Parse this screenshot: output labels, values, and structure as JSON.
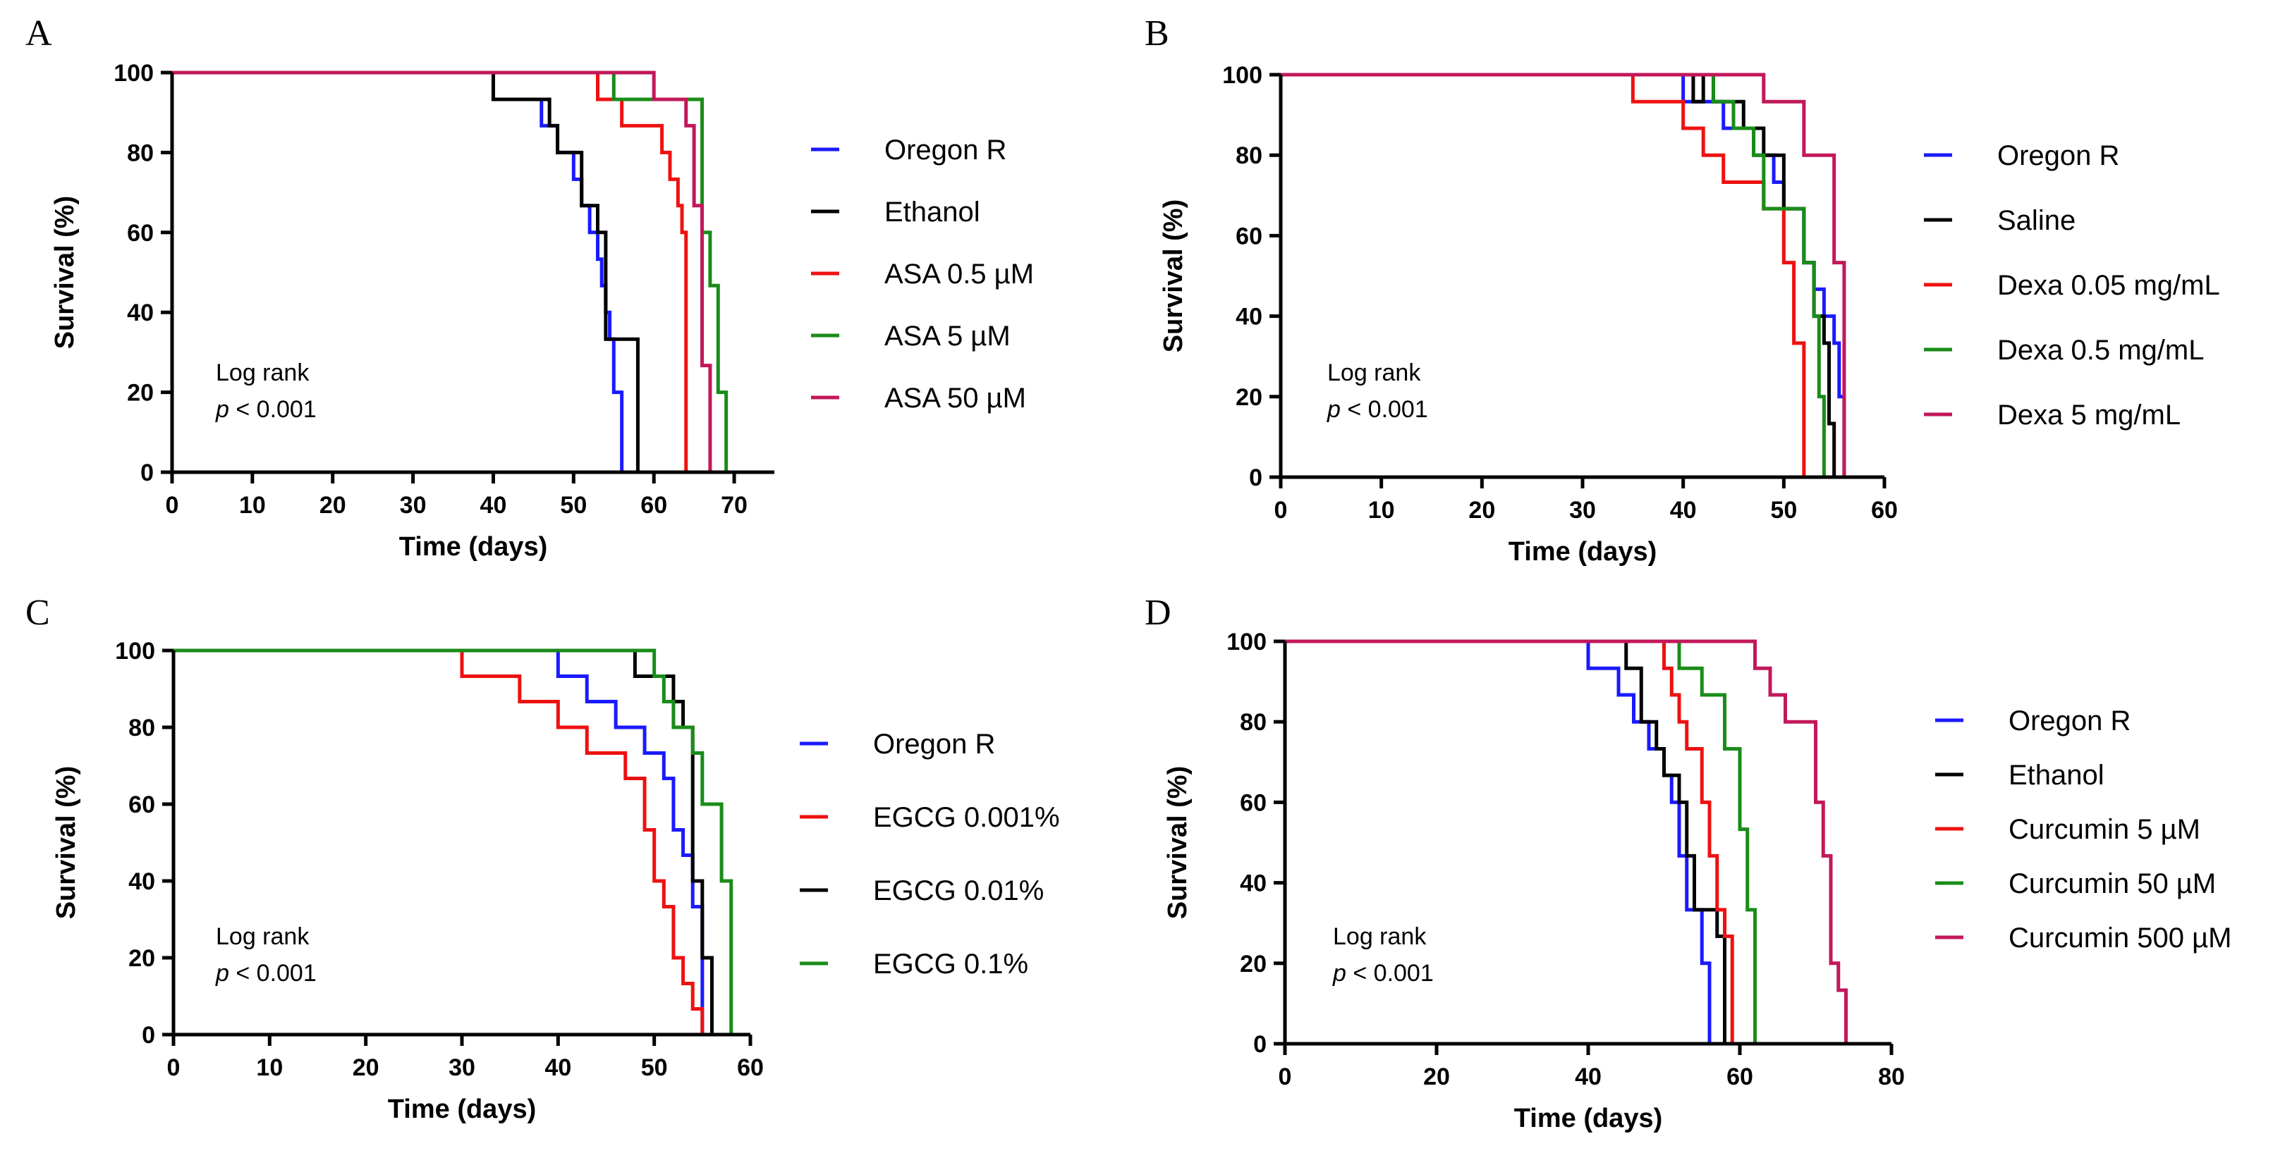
{
  "chart_data": [
    {
      "panel": "A",
      "type": "line",
      "subtype": "kaplan-meier",
      "xlabel": "Time (days)",
      "ylabel": "Survival (%)",
      "xlim": [
        0,
        75
      ],
      "ylim": [
        0,
        100
      ],
      "xticks": [
        0,
        10,
        20,
        30,
        40,
        50,
        60,
        70
      ],
      "yticks": [
        0,
        20,
        40,
        60,
        80,
        100
      ],
      "annotation": {
        "line1": "Log rank",
        "p_symbol": "p",
        "p_rest": " < 0.001"
      },
      "series": [
        {
          "name": "Oregon R",
          "color": "#1a1aff",
          "steps": [
            [
              0,
              100
            ],
            [
              40,
              93.3
            ],
            [
              46,
              86.7
            ],
            [
              48,
              80
            ],
            [
              50,
              73.3
            ],
            [
              51,
              66.7
            ],
            [
              52,
              60
            ],
            [
              53,
              53.3
            ],
            [
              53.5,
              46.7
            ],
            [
              54,
              40
            ],
            [
              54.5,
              33.3
            ],
            [
              55,
              20
            ],
            [
              56,
              0
            ]
          ]
        },
        {
          "name": "Ethanol",
          "color": "#000000",
          "steps": [
            [
              0,
              100
            ],
            [
              40,
              93.3
            ],
            [
              47,
              86.7
            ],
            [
              48,
              80
            ],
            [
              51,
              66.7
            ],
            [
              53,
              60
            ],
            [
              54,
              33.3
            ],
            [
              58,
              0
            ]
          ]
        },
        {
          "name": "ASA 0.5 µM",
          "color": "#ee1111",
          "steps": [
            [
              0,
              100
            ],
            [
              40,
              100
            ],
            [
              53,
              93.3
            ],
            [
              56,
              86.7
            ],
            [
              61,
              80
            ],
            [
              62,
              73.3
            ],
            [
              63,
              66.7
            ],
            [
              63.5,
              60
            ],
            [
              64,
              0
            ]
          ]
        },
        {
          "name": "ASA 5 µM",
          "color": "#1a8c1a",
          "steps": [
            [
              0,
              100
            ],
            [
              40,
              100
            ],
            [
              55,
              93.3
            ],
            [
              60,
              93.3
            ],
            [
              66,
              60
            ],
            [
              67,
              46.7
            ],
            [
              68,
              20
            ],
            [
              69,
              0
            ]
          ]
        },
        {
          "name": "ASA 50 µM",
          "color": "#c2185b",
          "steps": [
            [
              0,
              100
            ],
            [
              40,
              100
            ],
            [
              60,
              93.3
            ],
            [
              64,
              86.7
            ],
            [
              65,
              66.7
            ],
            [
              66,
              26.7
            ],
            [
              67,
              0
            ]
          ]
        }
      ]
    },
    {
      "panel": "B",
      "type": "line",
      "subtype": "kaplan-meier",
      "xlabel": "Time (days)",
      "ylabel": "Survival (%)",
      "xlim": [
        0,
        60
      ],
      "ylim": [
        0,
        100
      ],
      "xticks": [
        0,
        10,
        20,
        30,
        40,
        50,
        60
      ],
      "yticks": [
        0,
        20,
        40,
        60,
        80,
        100
      ],
      "annotation": {
        "line1": "Log rank",
        "p_symbol": "p",
        "p_rest": " < 0.001"
      },
      "series": [
        {
          "name": "Oregon R",
          "color": "#1a1aff",
          "steps": [
            [
              0,
              100
            ],
            [
              40,
              93.3
            ],
            [
              44,
              86.7
            ],
            [
              47,
              80
            ],
            [
              49,
              73.3
            ],
            [
              50,
              66.7
            ],
            [
              52,
              53.3
            ],
            [
              53,
              46.7
            ],
            [
              54,
              40
            ],
            [
              55,
              33.3
            ],
            [
              55.5,
              20
            ],
            [
              56,
              0
            ]
          ]
        },
        {
          "name": "Saline",
          "color": "#000000",
          "steps": [
            [
              0,
              100
            ],
            [
              41,
              93.3
            ],
            [
              42,
              100
            ],
            [
              43,
              93.3
            ],
            [
              46,
              86.7
            ],
            [
              48,
              80
            ],
            [
              50,
              66.7
            ],
            [
              52,
              53.3
            ],
            [
              53,
              40
            ],
            [
              54,
              33.3
            ],
            [
              54.5,
              13.3
            ],
            [
              55,
              0
            ]
          ]
        },
        {
          "name": "Dexa 0.05 mg/mL",
          "color": "#ee1111",
          "steps": [
            [
              0,
              100
            ],
            [
              35,
              93.3
            ],
            [
              40,
              86.7
            ],
            [
              42,
              80
            ],
            [
              44,
              73.3
            ],
            [
              48,
              66.7
            ],
            [
              50,
              53.3
            ],
            [
              51,
              33.3
            ],
            [
              52,
              0
            ]
          ]
        },
        {
          "name": "Dexa 0.5 mg/mL",
          "color": "#1a8c1a",
          "steps": [
            [
              0,
              100
            ],
            [
              43,
              93.3
            ],
            [
              45,
              86.7
            ],
            [
              47,
              80
            ],
            [
              48,
              66.7
            ],
            [
              51,
              66.7
            ],
            [
              52,
              53.3
            ],
            [
              53,
              40
            ],
            [
              53.5,
              20
            ],
            [
              54,
              0
            ]
          ]
        },
        {
          "name": "Dexa 5 mg/mL",
          "color": "#c2185b",
          "steps": [
            [
              0,
              100
            ],
            [
              48,
              93.3
            ],
            [
              52,
              80
            ],
            [
              55,
              53.3
            ],
            [
              56,
              0
            ]
          ]
        }
      ]
    },
    {
      "panel": "C",
      "type": "line",
      "subtype": "kaplan-meier",
      "xlabel": "Time (days)",
      "ylabel": "Survival (%)",
      "xlim": [
        0,
        60
      ],
      "ylim": [
        0,
        100
      ],
      "xticks": [
        0,
        10,
        20,
        30,
        40,
        50,
        60
      ],
      "yticks": [
        0,
        20,
        40,
        60,
        80,
        100
      ],
      "annotation": {
        "line1": "Log rank",
        "p_symbol": "p",
        "p_rest": " < 0.001"
      },
      "series": [
        {
          "name": "Oregon R",
          "color": "#1a1aff",
          "steps": [
            [
              0,
              100
            ],
            [
              40,
              93.3
            ],
            [
              43,
              86.7
            ],
            [
              46,
              80
            ],
            [
              49,
              73.3
            ],
            [
              51,
              66.7
            ],
            [
              52,
              53.3
            ],
            [
              53,
              46.7
            ],
            [
              54,
              33.3
            ],
            [
              55,
              0
            ]
          ]
        },
        {
          "name": "EGCG 0.001%",
          "color": "#ee1111",
          "steps": [
            [
              0,
              100
            ],
            [
              30,
              93.3
            ],
            [
              36,
              86.7
            ],
            [
              40,
              80
            ],
            [
              43,
              73.3
            ],
            [
              47,
              66.7
            ],
            [
              49,
              53.3
            ],
            [
              50,
              40
            ],
            [
              51,
              33.3
            ],
            [
              52,
              20
            ],
            [
              53,
              13.3
            ],
            [
              54,
              6.7
            ],
            [
              55,
              0
            ]
          ]
        },
        {
          "name": "EGCG 0.01%",
          "color": "#000000",
          "steps": [
            [
              0,
              100
            ],
            [
              47,
              100
            ],
            [
              48,
              93.3
            ],
            [
              52,
              86.7
            ],
            [
              53,
              80
            ],
            [
              54,
              40
            ],
            [
              55,
              20
            ],
            [
              56,
              0
            ]
          ]
        },
        {
          "name": "EGCG 0.1%",
          "color": "#1a8c1a",
          "steps": [
            [
              0,
              100
            ],
            [
              48,
              100
            ],
            [
              50,
              93.3
            ],
            [
              51,
              86.7
            ],
            [
              52,
              80
            ],
            [
              54,
              73.3
            ],
            [
              55,
              60
            ],
            [
              57,
              40
            ],
            [
              58,
              0
            ]
          ]
        }
      ]
    },
    {
      "panel": "D",
      "type": "line",
      "subtype": "kaplan-meier",
      "xlabel": "Time (days)",
      "ylabel": "Survival (%)",
      "xlim": [
        0,
        80
      ],
      "ylim": [
        0,
        100
      ],
      "xticks": [
        0,
        20,
        40,
        60,
        80
      ],
      "yticks": [
        0,
        20,
        40,
        60,
        80,
        100
      ],
      "annotation": {
        "line1": "Log rank",
        "p_symbol": "p",
        "p_rest": " < 0.001"
      },
      "series": [
        {
          "name": "Oregon R",
          "color": "#1a1aff",
          "steps": [
            [
              0,
              100
            ],
            [
              40,
              93.3
            ],
            [
              44,
              86.7
            ],
            [
              46,
              80
            ],
            [
              48,
              73.3
            ],
            [
              50,
              66.7
            ],
            [
              51,
              60
            ],
            [
              52,
              46.7
            ],
            [
              53,
              33.3
            ],
            [
              55,
              20
            ],
            [
              56,
              0
            ]
          ]
        },
        {
          "name": "Ethanol",
          "color": "#000000",
          "steps": [
            [
              0,
              100
            ],
            [
              40,
              100
            ],
            [
              45,
              93.3
            ],
            [
              47,
              80
            ],
            [
              49,
              73.3
            ],
            [
              50,
              66.7
            ],
            [
              52,
              60
            ],
            [
              53,
              46.7
            ],
            [
              54,
              33.3
            ],
            [
              57,
              26.7
            ],
            [
              58,
              0
            ]
          ]
        },
        {
          "name": "Curcumin 5 µM",
          "color": "#ee1111",
          "steps": [
            [
              0,
              100
            ],
            [
              50,
              93.3
            ],
            [
              51,
              86.7
            ],
            [
              52,
              80
            ],
            [
              53,
              73.3
            ],
            [
              55,
              60
            ],
            [
              56,
              46.7
            ],
            [
              57,
              33.3
            ],
            [
              58,
              26.7
            ],
            [
              59,
              0
            ]
          ]
        },
        {
          "name": "Curcumin 50 µM",
          "color": "#1a8c1a",
          "steps": [
            [
              0,
              100
            ],
            [
              50,
              100
            ],
            [
              52,
              93.3
            ],
            [
              55,
              86.7
            ],
            [
              58,
              73.3
            ],
            [
              60,
              53.3
            ],
            [
              61,
              33.3
            ],
            [
              62,
              0
            ]
          ]
        },
        {
          "name": "Curcumin 500 µM",
          "color": "#c2185b",
          "steps": [
            [
              0,
              100
            ],
            [
              60,
              100
            ],
            [
              62,
              93.3
            ],
            [
              64,
              86.7
            ],
            [
              66,
              80
            ],
            [
              70,
              60
            ],
            [
              71,
              46.7
            ],
            [
              72,
              20
            ],
            [
              73,
              13.3
            ],
            [
              74,
              0
            ]
          ]
        }
      ]
    }
  ]
}
